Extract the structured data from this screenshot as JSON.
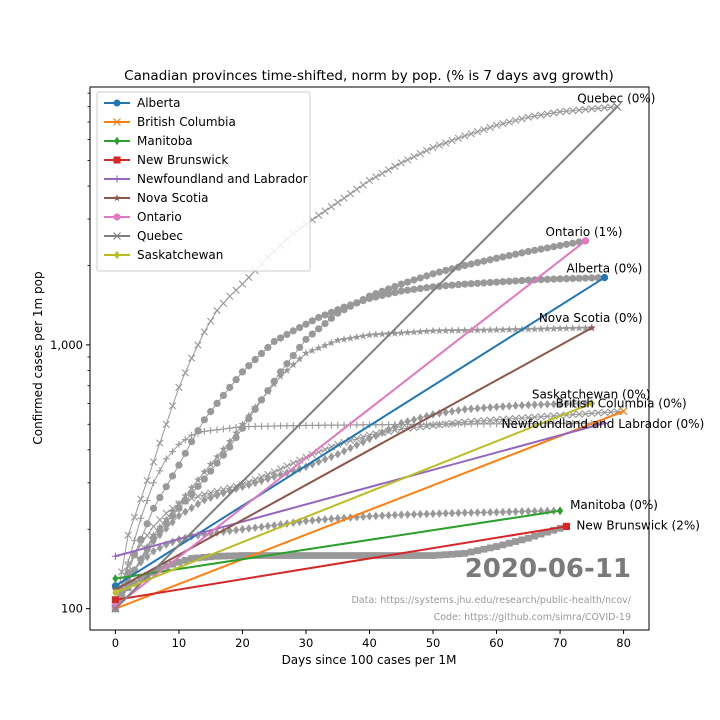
{
  "chart_data": {
    "type": "line",
    "title": "Canadian provinces time-shifted, norm by pop. (% is 7 days avg growth)",
    "xlabel": "Days since 100 cases per 1M",
    "ylabel": "Confirmed cases per 1m pop",
    "yscale": "log",
    "xlim": [
      -4,
      84
    ],
    "ylim": [
      83,
      9500
    ],
    "x_ticks": [
      0,
      10,
      20,
      30,
      40,
      50,
      60,
      70,
      80
    ],
    "y_ticks": [
      {
        "value": 100,
        "label": "100"
      },
      {
        "value": 1000,
        "label": "1,000"
      }
    ],
    "grid": false,
    "legend_position": "top-left",
    "date_label": "2020-06-11",
    "source_lines": [
      "Data: https://systems.jhu.edu/research/public-health/ncov/",
      "Code: https://github.com/simra/COVID-19"
    ],
    "fits": [
      {
        "name": "Alberta",
        "color": "#1f77b4",
        "marker": "circle",
        "x": [
          0,
          77
        ],
        "y": [
          122,
          1800
        ],
        "label": "Alberta (0%)"
      },
      {
        "name": "British Columbia",
        "color": "#ff7f0e",
        "marker": "x",
        "x": [
          0,
          80
        ],
        "y": [
          100,
          560
        ],
        "label": "British Columbia (0%)"
      },
      {
        "name": "Manitoba",
        "color": "#2ca02c",
        "marker": "diamond",
        "x": [
          0,
          70
        ],
        "y": [
          130,
          235
        ],
        "label": "Manitoba (0%)"
      },
      {
        "name": "New Brunswick",
        "color": "#d62728",
        "marker": "square",
        "x": [
          0,
          71
        ],
        "y": [
          108,
          205
        ],
        "label": "New Brunswick (2%)"
      },
      {
        "name": "Newfoundland and Labrador",
        "color": "#9467bd",
        "marker": "plus",
        "x": [
          0,
          77
        ],
        "y": [
          158,
          505
        ],
        "label": "Newfoundland and Labrador (0%)"
      },
      {
        "name": "Nova Scotia",
        "color": "#8c564b",
        "marker": "star",
        "x": [
          0,
          75
        ],
        "y": [
          118,
          1160
        ],
        "label": "Nova Scotia (0%)"
      },
      {
        "name": "Ontario",
        "color": "#e377c2",
        "marker": "circle",
        "x": [
          0,
          74
        ],
        "y": [
          102,
          2480
        ],
        "label": "Ontario (1%)"
      },
      {
        "name": "Quebec",
        "color": "#7f7f7f",
        "marker": "x",
        "x": [
          0,
          79
        ],
        "y": [
          100,
          8000
        ],
        "label": "Quebec (0%)"
      },
      {
        "name": "Saskatchewan",
        "color": "#bcbd22",
        "marker": "diamond",
        "x": [
          0,
          75
        ],
        "y": [
          115,
          600
        ],
        "label": "Saskatchewan (0%)"
      }
    ],
    "observed_series": [
      {
        "name": "Alberta",
        "marker": "circle",
        "spacing": 1,
        "x": [
          0,
          3,
          6,
          8,
          10,
          12,
          14,
          16,
          18,
          20,
          22,
          25,
          28,
          32,
          36,
          40,
          45,
          50,
          55,
          60,
          65,
          70,
          77
        ],
        "y": [
          100,
          160,
          240,
          290,
          350,
          430,
          520,
          600,
          690,
          790,
          880,
          1030,
          1130,
          1270,
          1390,
          1500,
          1600,
          1660,
          1700,
          1730,
          1760,
          1780,
          1800
        ]
      },
      {
        "name": "British Columbia",
        "marker": "x",
        "spacing": 1,
        "x": [
          0,
          2,
          4,
          6,
          8,
          10,
          12,
          15,
          20,
          25,
          30,
          35,
          40,
          45,
          50,
          55,
          60,
          65,
          70,
          75,
          80
        ],
        "y": [
          100,
          145,
          175,
          205,
          230,
          250,
          262,
          275,
          295,
          330,
          375,
          420,
          455,
          480,
          495,
          510,
          520,
          530,
          540,
          550,
          560
        ]
      },
      {
        "name": "Manitoba",
        "marker": "diamond",
        "spacing": 1,
        "x": [
          0,
          2,
          4,
          6,
          8,
          10,
          12,
          15,
          20,
          25,
          30,
          35,
          40,
          45,
          50,
          55,
          60,
          65,
          70
        ],
        "y": [
          100,
          130,
          150,
          165,
          175,
          183,
          188,
          193,
          200,
          207,
          215,
          220,
          224,
          227,
          229,
          231,
          232,
          234,
          235
        ]
      },
      {
        "name": "New Brunswick",
        "marker": "square",
        "spacing": 1,
        "x": [
          0,
          2,
          4,
          8,
          12,
          16,
          20,
          30,
          40,
          50,
          55,
          60,
          65,
          68,
          71
        ],
        "y": [
          100,
          120,
          130,
          145,
          155,
          158,
          159,
          159,
          159,
          159,
          162,
          172,
          185,
          195,
          205
        ]
      },
      {
        "name": "Newfoundland and Labrador",
        "marker": "plus",
        "spacing": 1,
        "x": [
          0,
          2,
          4,
          6,
          8,
          10,
          12,
          14,
          20,
          30,
          40,
          50,
          60,
          70,
          77
        ],
        "y": [
          100,
          150,
          220,
          300,
          370,
          420,
          455,
          470,
          490,
          495,
          498,
          500,
          502,
          504,
          505
        ]
      },
      {
        "name": "Nova Scotia",
        "marker": "star",
        "spacing": 1,
        "x": [
          0,
          3,
          6,
          10,
          14,
          18,
          22,
          26,
          30,
          35,
          40,
          50,
          60,
          75
        ],
        "y": [
          100,
          140,
          190,
          250,
          330,
          430,
          580,
          760,
          930,
          1040,
          1090,
          1130,
          1140,
          1160
        ]
      },
      {
        "name": "Ontario",
        "marker": "circle",
        "spacing": 1,
        "x": [
          0,
          3,
          6,
          10,
          14,
          18,
          22,
          26,
          30,
          35,
          40,
          45,
          50,
          55,
          60,
          65,
          70,
          74
        ],
        "y": [
          100,
          140,
          185,
          240,
          310,
          410,
          570,
          790,
          1050,
          1320,
          1530,
          1700,
          1860,
          2000,
          2130,
          2260,
          2380,
          2480
        ]
      },
      {
        "name": "Quebec",
        "marker": "x",
        "spacing": 1,
        "x": [
          0,
          2,
          4,
          6,
          8,
          10,
          12,
          14,
          16,
          18,
          20,
          24,
          28,
          32,
          36,
          40,
          45,
          50,
          55,
          60,
          65,
          70,
          75,
          79
        ],
        "y": [
          100,
          190,
          260,
          360,
          500,
          690,
          890,
          1120,
          1350,
          1530,
          1700,
          2150,
          2650,
          3100,
          3600,
          4200,
          4900,
          5600,
          6200,
          6800,
          7300,
          7650,
          7850,
          8000
        ]
      },
      {
        "name": "Saskatchewan",
        "marker": "diamond",
        "spacing": 1,
        "x": [
          0,
          3,
          6,
          10,
          14,
          18,
          22,
          26,
          30,
          35,
          40,
          45,
          50,
          55,
          60,
          65,
          70,
          75
        ],
        "y": [
          100,
          140,
          180,
          225,
          258,
          280,
          300,
          322,
          345,
          385,
          440,
          505,
          545,
          570,
          582,
          592,
          597,
          600
        ]
      }
    ]
  }
}
